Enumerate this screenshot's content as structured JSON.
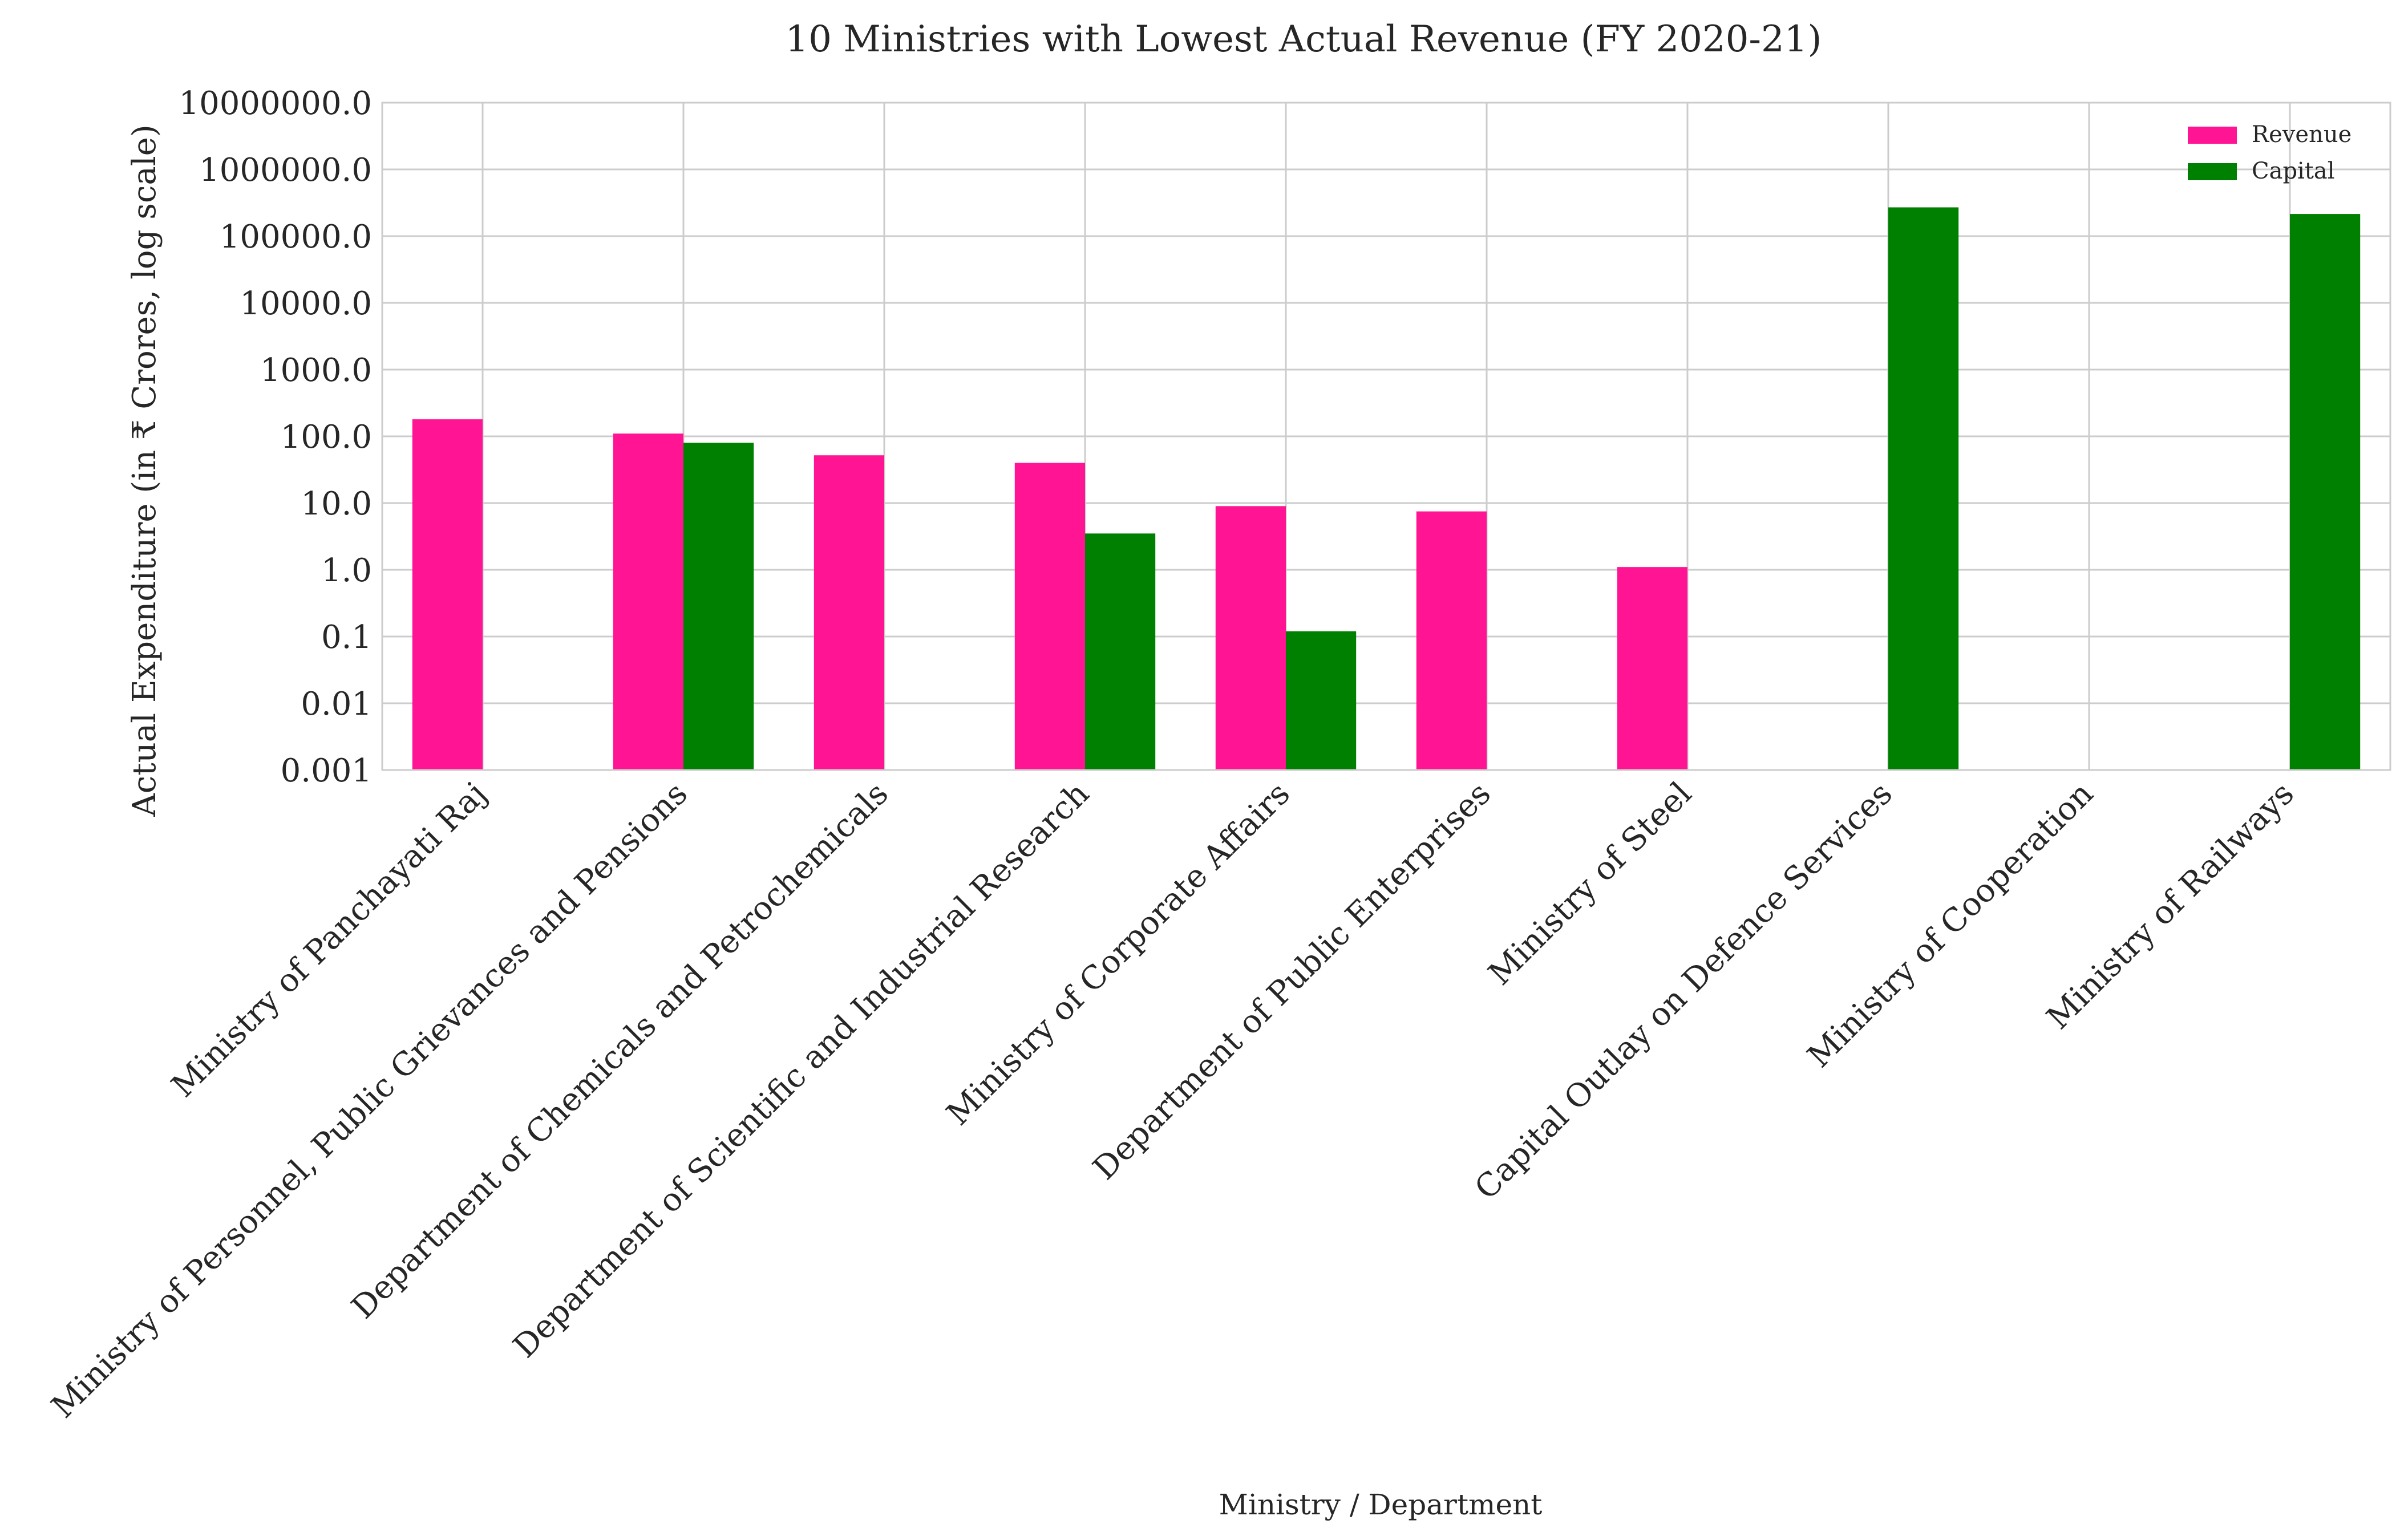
{
  "chart_data": {
    "type": "bar",
    "title": "10 Ministries with Lowest Actual Revenue (FY 2020-21)",
    "xlabel": "Ministry / Department",
    "ylabel": "Actual Expenditure (in ₹ Crores, log scale)",
    "yscale": "log",
    "ylim": [
      0.001,
      10000000
    ],
    "yticks": [
      0.001,
      0.01,
      0.1,
      1,
      10,
      100,
      1000,
      10000,
      100000,
      1000000,
      10000000
    ],
    "ytick_labels": [
      "0.001",
      "0.01",
      "0.1",
      "1.0",
      "10.0",
      "100.0",
      "1000.0",
      "10000.0",
      "100000.0",
      "1000000.0",
      "10000000.0"
    ],
    "grid": true,
    "legend_position": "top-right",
    "categories": [
      "Ministry of Panchayati Raj",
      "Ministry of Personnel, Public Grievances and Pensions",
      "Department of Chemicals and Petrochemicals",
      "Department of Scientific and Industrial Research",
      "Ministry of Corporate Affairs",
      "Department of Public Enterprises",
      "Ministry of Steel",
      "Capital Outlay on Defence Services",
      "Ministry of Cooperation",
      "Ministry of Railways"
    ],
    "series": [
      {
        "name": "Revenue",
        "color": "#ff1493",
        "values": [
          180,
          110,
          52,
          40,
          9,
          7.5,
          1.1,
          null,
          null,
          null
        ]
      },
      {
        "name": "Capital",
        "color": "#008000",
        "values": [
          null,
          80,
          null,
          3.5,
          0.12,
          null,
          null,
          270000,
          null,
          215000
        ]
      }
    ]
  }
}
